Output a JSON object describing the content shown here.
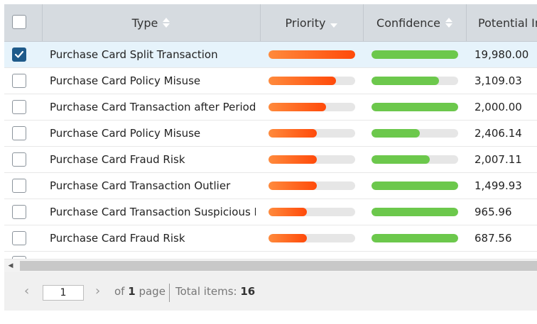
{
  "header": {
    "type_label": "Type",
    "priority_label": "Priority",
    "confidence_label": "Confidence",
    "potential_label": "Potential In"
  },
  "rows": [
    {
      "checked": true,
      "type": "Purchase Card Split Transaction",
      "priority": 1.0,
      "confidence": 1.0,
      "amount": "19,980.00"
    },
    {
      "checked": false,
      "type": "Purchase Card Policy Misuse",
      "priority": 0.78,
      "confidence": 0.78,
      "amount": "3,109.03"
    },
    {
      "checked": false,
      "type": "Purchase Card Transaction after Period",
      "priority": 0.66,
      "confidence": 1.0,
      "amount": "2,000.00"
    },
    {
      "checked": false,
      "type": "Purchase Card Policy Misuse",
      "priority": 0.56,
      "confidence": 0.56,
      "amount": "2,406.14"
    },
    {
      "checked": false,
      "type": "Purchase Card Fraud Risk",
      "priority": 0.56,
      "confidence": 0.67,
      "amount": "2,007.11"
    },
    {
      "checked": false,
      "type": "Purchase Card Transaction Outlier",
      "priority": 0.56,
      "confidence": 1.0,
      "amount": "1,499.93"
    },
    {
      "checked": false,
      "type": "Purchase Card Transaction Suspicious I",
      "priority": 0.44,
      "confidence": 1.0,
      "amount": "965.96"
    },
    {
      "checked": false,
      "type": "Purchase Card Fraud Risk",
      "priority": 0.44,
      "confidence": 1.0,
      "amount": "687.56"
    }
  ],
  "pager": {
    "page_value": "1",
    "of_text": "of",
    "page_count": "1",
    "page_word": "page",
    "total_label": "Total items:",
    "total_value": "16"
  },
  "colors": {
    "header_bg": "#d6dbe0",
    "selected_row": "#e6f3fb",
    "checkbox_checked": "#1e5a8a",
    "priority_start": "#ff8a3c",
    "priority_end": "#ff4a0a",
    "confidence": "#6cc84c"
  }
}
